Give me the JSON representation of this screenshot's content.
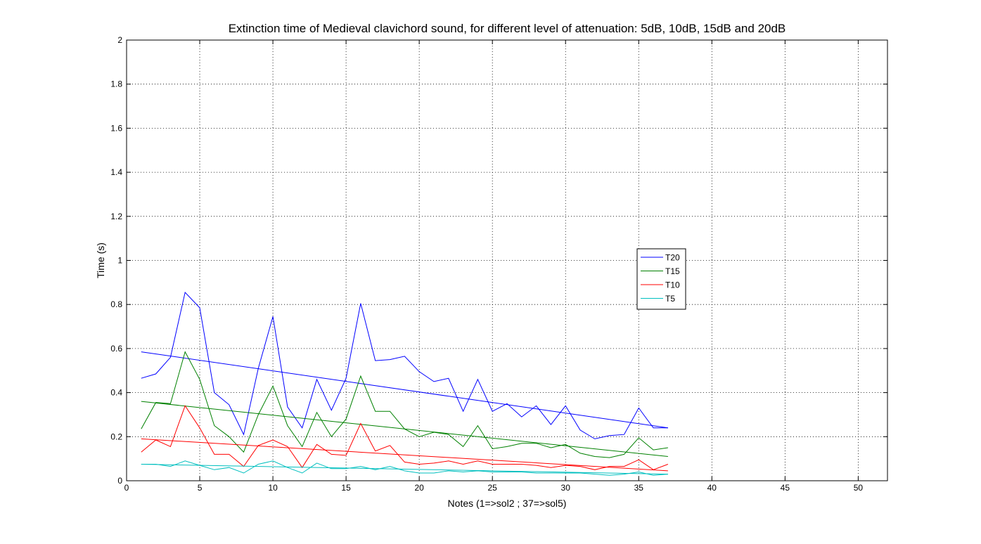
{
  "chart_data": {
    "type": "line",
    "title": "Extinction time of Medieval clavichord sound, for different level of attenuation: 5dB, 10dB, 15dB and 20dB",
    "xlabel": "Notes (1=>sol2 ; 37=>sol5)",
    "ylabel": "Time (s)",
    "xlim": [
      0,
      52
    ],
    "ylim": [
      0,
      2
    ],
    "xticks": [
      0,
      5,
      10,
      15,
      20,
      25,
      30,
      35,
      40,
      45,
      50
    ],
    "xtick_labels": [
      "0",
      "5",
      "10",
      "15",
      "20",
      "25",
      "30",
      "35",
      "40",
      "45",
      "50"
    ],
    "yticks": [
      0,
      0.2,
      0.4,
      0.6,
      0.8,
      1,
      1.2,
      1.4,
      1.6,
      1.8,
      2
    ],
    "ytick_labels": [
      "0",
      "0.2",
      "0.4",
      "0.6",
      "0.8",
      "1",
      "1.2",
      "1.4",
      "1.6",
      "1.8",
      "2"
    ],
    "grid": true,
    "legend_position": "center-right",
    "x": [
      1,
      2,
      3,
      4,
      5,
      6,
      7,
      8,
      9,
      10,
      11,
      12,
      13,
      14,
      15,
      16,
      17,
      18,
      19,
      20,
      21,
      22,
      23,
      24,
      25,
      26,
      27,
      28,
      29,
      30,
      31,
      32,
      33,
      34,
      35,
      36,
      37
    ],
    "series": [
      {
        "name": "T20",
        "color": "#0000ff",
        "values": [
          0.465,
          0.485,
          0.56,
          0.855,
          0.785,
          0.4,
          0.345,
          0.21,
          0.51,
          0.745,
          0.335,
          0.24,
          0.46,
          0.32,
          0.465,
          0.805,
          0.545,
          0.55,
          0.565,
          0.495,
          0.45,
          0.465,
          0.315,
          0.46,
          0.315,
          0.35,
          0.29,
          0.34,
          0.255,
          0.34,
          0.23,
          0.19,
          0.205,
          0.21,
          0.33,
          0.24,
          0.24
        ],
        "trend": [
          0.585,
          0.24
        ]
      },
      {
        "name": "T15",
        "color": "#008000",
        "values": [
          0.235,
          0.355,
          0.35,
          0.585,
          0.46,
          0.25,
          0.2,
          0.13,
          0.3,
          0.43,
          0.25,
          0.155,
          0.31,
          0.2,
          0.28,
          0.475,
          0.315,
          0.315,
          0.235,
          0.2,
          0.22,
          0.21,
          0.155,
          0.25,
          0.145,
          0.155,
          0.17,
          0.17,
          0.15,
          0.165,
          0.125,
          0.11,
          0.105,
          0.12,
          0.195,
          0.14,
          0.15
        ],
        "trend": [
          0.36,
          0.11
        ]
      },
      {
        "name": "T10",
        "color": "#ff0000",
        "values": [
          0.13,
          0.185,
          0.155,
          0.34,
          0.24,
          0.12,
          0.12,
          0.065,
          0.16,
          0.185,
          0.155,
          0.06,
          0.165,
          0.12,
          0.115,
          0.26,
          0.135,
          0.16,
          0.085,
          0.075,
          0.08,
          0.09,
          0.075,
          0.09,
          0.075,
          0.075,
          0.075,
          0.07,
          0.06,
          0.07,
          0.065,
          0.05,
          0.065,
          0.065,
          0.095,
          0.05,
          0.075
        ],
        "trend": [
          0.19,
          0.045
        ]
      },
      {
        "name": "T5",
        "color": "#00bfbf",
        "values": [
          0.075,
          0.075,
          0.065,
          0.09,
          0.07,
          0.05,
          0.06,
          0.035,
          0.075,
          0.09,
          0.06,
          0.035,
          0.08,
          0.055,
          0.055,
          0.065,
          0.05,
          0.065,
          0.045,
          0.035,
          0.035,
          0.045,
          0.04,
          0.045,
          0.04,
          0.04,
          0.04,
          0.035,
          0.035,
          0.035,
          0.035,
          0.03,
          0.025,
          0.03,
          0.04,
          0.025,
          0.03
        ],
        "trend": [
          0.075,
          0.03
        ]
      }
    ]
  }
}
